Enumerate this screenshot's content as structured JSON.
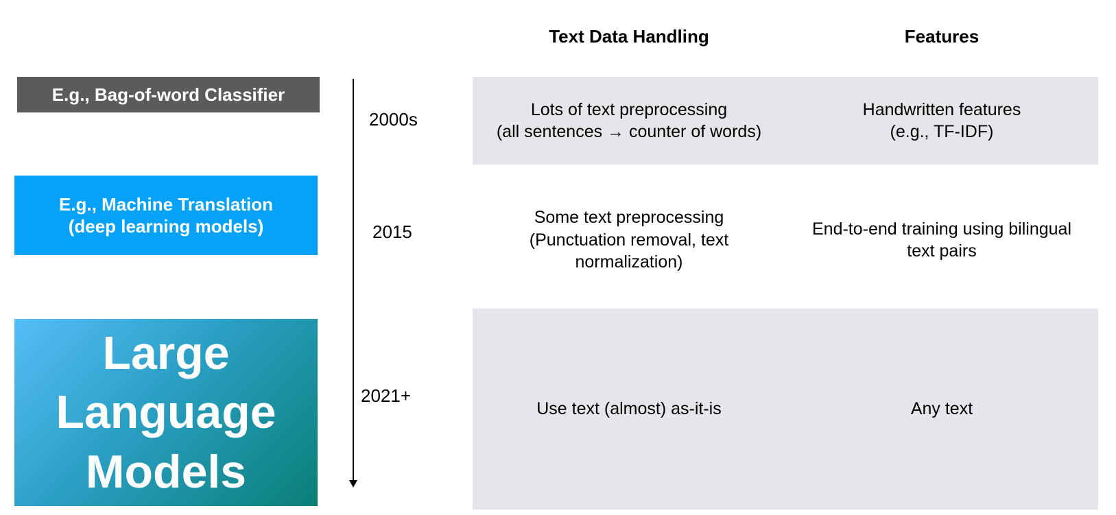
{
  "headers": {
    "text_data_handling": "Text Data Handling",
    "features": "Features"
  },
  "eras": [
    {
      "lines": [
        "E.g., Bag-of-word Classifier"
      ],
      "color": "#5b5b5b"
    },
    {
      "lines": [
        "E.g., Machine Translation",
        "(deep learning models)"
      ],
      "color": "#06a2f7"
    },
    {
      "lines": [
        "Large",
        "Language",
        "Models"
      ],
      "color": "#0a7f77"
    }
  ],
  "years": [
    "2000s",
    "2015",
    "2021+"
  ],
  "rows": [
    {
      "handling": [
        "Lots of text preprocessing",
        "(all sentences → counter of words)"
      ],
      "features": [
        "Handwritten features",
        "(e.g., TF-IDF)"
      ]
    },
    {
      "handling": [
        "Some text preprocessing",
        "(Punctuation removal, text",
        "normalization)"
      ],
      "features": [
        "End-to-end training using bilingual",
        "text pairs"
      ]
    },
    {
      "handling": [
        "Use text (almost) as-it-is"
      ],
      "features": [
        "Any text"
      ]
    }
  ]
}
